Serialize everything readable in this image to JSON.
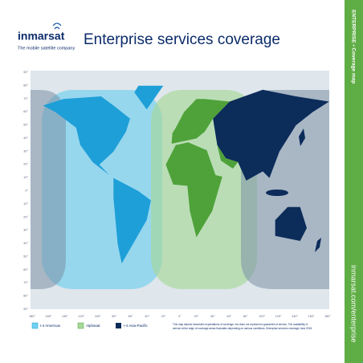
{
  "logo": {
    "name": "inmarsat",
    "tagline": "The mobile satellite company"
  },
  "title": "Enterprise services coverage",
  "sidebar": {
    "section": "ENTERPRISE • Coverage map",
    "url": "inmarsat.com/enterprise"
  },
  "map": {
    "latitude_labels": [
      "90°",
      "80°",
      "70°",
      "60°",
      "50°",
      "40°",
      "30°",
      "20°",
      "10°",
      "0°",
      "10°",
      "20°",
      "30°",
      "40°",
      "50°",
      "60°",
      "70°",
      "80°",
      "90°"
    ],
    "longitude_labels": [
      "180°",
      "160°",
      "140°",
      "120°",
      "100°",
      "80°",
      "60°",
      "40°",
      "20°",
      "0°",
      "20°",
      "40°",
      "60°",
      "80°",
      "100°",
      "120°",
      "140°",
      "160°",
      "180°"
    ]
  },
  "legend": [
    "I-4 Americas",
    "Alphasat",
    "I-4 Asia-Pacific"
  ],
  "disclaimer": [
    "This map depicts Inmarsat's expectations of coverage, but does not represent a guarantee of service. The availability of",
    "service at the edge of coverage areas fluctuates depending on various conditions. Enterprise services coverage June 2015."
  ]
}
